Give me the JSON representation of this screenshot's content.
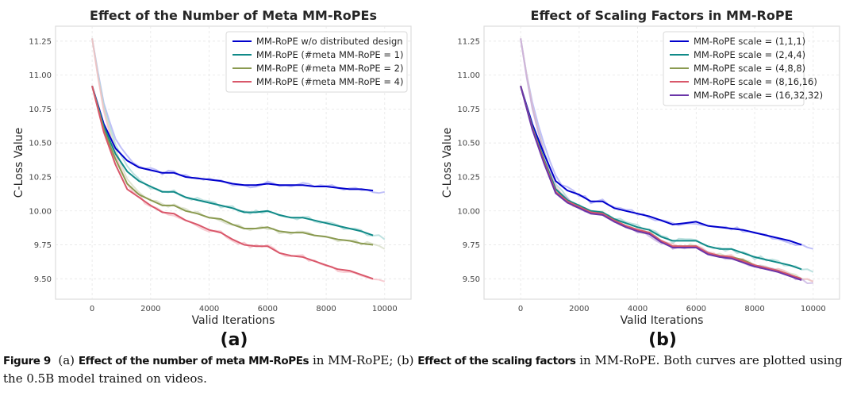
{
  "chart_data": [
    {
      "type": "line",
      "panel_label": "(a)",
      "title": "Effect of the Number of Meta MM-RoPEs",
      "xlabel": "Valid Iterations",
      "ylabel": "C-Loss Value",
      "xlim": [
        -1250,
        10900
      ],
      "ylim": [
        9.35,
        11.36
      ],
      "xticks": [
        0,
        2000,
        4000,
        6000,
        8000,
        10000
      ],
      "yticks": [
        9.5,
        9.75,
        10.0,
        10.25,
        10.5,
        10.75,
        11.0,
        11.25
      ],
      "ytick_labels": [
        "9.50",
        "9.75",
        "10.00",
        "10.25",
        "10.50",
        "10.75",
        "11.00",
        "11.25"
      ],
      "grid": true,
      "legend_position": "top-right",
      "x": [
        0,
        400,
        800,
        1200,
        1600,
        2000,
        2400,
        2800,
        3200,
        3600,
        4000,
        4400,
        4800,
        5200,
        5600,
        6000,
        6400,
        6800,
        7200,
        7600,
        8000,
        8400,
        8800,
        9200,
        9600
      ],
      "raw_start": 11.27,
      "series": [
        {
          "name": "MM-RoPE w/o distributed design",
          "color": "#0000cc",
          "raw_color": "#a9a9f5",
          "values": [
            10.92,
            10.64,
            10.46,
            10.37,
            10.32,
            10.3,
            10.28,
            10.28,
            10.25,
            10.24,
            10.23,
            10.22,
            10.2,
            10.19,
            10.19,
            10.2,
            10.19,
            10.19,
            10.19,
            10.18,
            10.18,
            10.17,
            10.16,
            10.16,
            10.15
          ],
          "raw_end": 10.14
        },
        {
          "name": "MM-RoPE (#meta MM-RoPE = 1)",
          "color": "#108a88",
          "raw_color": "#a8d8d6",
          "values": [
            10.92,
            10.62,
            10.42,
            10.29,
            10.22,
            10.18,
            10.14,
            10.14,
            10.1,
            10.08,
            10.06,
            10.04,
            10.02,
            9.99,
            9.99,
            10.0,
            9.97,
            9.95,
            9.95,
            9.93,
            9.91,
            9.89,
            9.87,
            9.85,
            9.82
          ],
          "raw_end": 9.79
        },
        {
          "name": "MM-RoPE (#meta MM-RoPE = 2)",
          "color": "#8a9a50",
          "raw_color": "#d6dcc4",
          "values": [
            10.92,
            10.6,
            10.38,
            10.2,
            10.12,
            10.08,
            10.04,
            10.04,
            10.0,
            9.98,
            9.95,
            9.94,
            9.9,
            9.87,
            9.87,
            9.88,
            9.85,
            9.84,
            9.84,
            9.82,
            9.81,
            9.79,
            9.78,
            9.76,
            9.75
          ],
          "raw_end": 9.72
        },
        {
          "name": "MM-RoPE (#meta MM-RoPE = 4)",
          "color": "#d9576a",
          "raw_color": "#f5bcc4",
          "values": [
            10.92,
            10.58,
            10.34,
            10.16,
            10.1,
            10.04,
            9.99,
            9.98,
            9.93,
            9.9,
            9.86,
            9.84,
            9.79,
            9.75,
            9.74,
            9.74,
            9.69,
            9.67,
            9.66,
            9.63,
            9.6,
            9.57,
            9.56,
            9.53,
            9.5
          ],
          "raw_end": 9.48
        }
      ]
    },
    {
      "type": "line",
      "panel_label": "(b)",
      "title": "Effect of Scaling Factors in MM-RoPE",
      "xlabel": "Valid Iterations",
      "ylabel": "C-Loss Value",
      "xlim": [
        -1250,
        10900
      ],
      "ylim": [
        9.35,
        11.36
      ],
      "xticks": [
        0,
        2000,
        4000,
        6000,
        8000,
        10000
      ],
      "yticks": [
        9.5,
        9.75,
        10.0,
        10.25,
        10.5,
        10.75,
        11.0,
        11.25
      ],
      "ytick_labels": [
        "9.50",
        "9.75",
        "10.00",
        "10.25",
        "10.50",
        "10.75",
        "11.00",
        "11.25"
      ],
      "grid": true,
      "legend_position": "top-right",
      "x": [
        0,
        400,
        800,
        1200,
        1600,
        2000,
        2400,
        2800,
        3200,
        3600,
        4000,
        4400,
        4800,
        5200,
        5600,
        6000,
        6400,
        6800,
        7200,
        7600,
        8000,
        8400,
        8800,
        9200,
        9600
      ],
      "raw_start": 11.27,
      "series": [
        {
          "name": "MM-RoPE scale = (1,1,1)",
          "color": "#0000cc",
          "raw_color": "#a9a9f5",
          "values": [
            10.92,
            10.64,
            10.42,
            10.22,
            10.15,
            10.12,
            10.07,
            10.07,
            10.02,
            10.0,
            9.98,
            9.96,
            9.93,
            9.9,
            9.91,
            9.92,
            9.89,
            9.88,
            9.87,
            9.86,
            9.84,
            9.82,
            9.8,
            9.78,
            9.75
          ],
          "raw_end": 9.72
        },
        {
          "name": "MM-RoPE scale = (2,4,4)",
          "color": "#108a88",
          "raw_color": "#a8d8d6",
          "values": [
            10.92,
            10.62,
            10.38,
            10.16,
            10.08,
            10.04,
            10.0,
            9.99,
            9.94,
            9.91,
            9.88,
            9.86,
            9.81,
            9.78,
            9.78,
            9.78,
            9.74,
            9.72,
            9.72,
            9.69,
            9.66,
            9.64,
            9.62,
            9.6,
            9.57
          ],
          "raw_end": 9.55
        },
        {
          "name": "MM-RoPE scale = (4,8,8)",
          "color": "#8a9a50",
          "raw_color": "#d6dcc4",
          "values": [
            10.92,
            10.61,
            10.37,
            10.14,
            10.07,
            10.03,
            9.99,
            9.98,
            9.93,
            9.89,
            9.86,
            9.84,
            9.78,
            9.74,
            9.74,
            9.74,
            9.69,
            9.67,
            9.66,
            9.64,
            9.6,
            9.58,
            9.56,
            9.53,
            9.5
          ],
          "raw_end": 9.48
        },
        {
          "name": "MM-RoPE scale = (8,16,16)",
          "color": "#d9576a",
          "raw_color": "#f5bcc4",
          "values": [
            10.92,
            10.61,
            10.36,
            10.14,
            10.07,
            10.03,
            9.99,
            9.98,
            9.93,
            9.89,
            9.86,
            9.84,
            9.78,
            9.74,
            9.74,
            9.74,
            9.69,
            9.67,
            9.66,
            9.63,
            9.6,
            9.58,
            9.56,
            9.53,
            9.5
          ],
          "raw_end": 9.48
        },
        {
          "name": "MM-RoPE scale = (16,32,32)",
          "color": "#6a35a8",
          "raw_color": "#c4afe0",
          "values": [
            10.92,
            10.6,
            10.35,
            10.13,
            10.06,
            10.02,
            9.98,
            9.97,
            9.92,
            9.88,
            9.85,
            9.83,
            9.77,
            9.73,
            9.73,
            9.73,
            9.68,
            9.66,
            9.65,
            9.62,
            9.59,
            9.57,
            9.55,
            9.52,
            9.49
          ],
          "raw_end": 9.47
        }
      ]
    }
  ],
  "caption": {
    "figure_label": "Figure 9",
    "part_a_label": "(a)",
    "part_a_bold": "Effect of the number of meta MM-RoPEs",
    "part_a_rest": " in MM-RoPE; ",
    "part_b_label": "(b)",
    "part_b_bold": "Effect of the scaling factors",
    "part_b_rest": " in MM-RoPE. Both curves are plotted using the 0.5B model trained on videos."
  }
}
